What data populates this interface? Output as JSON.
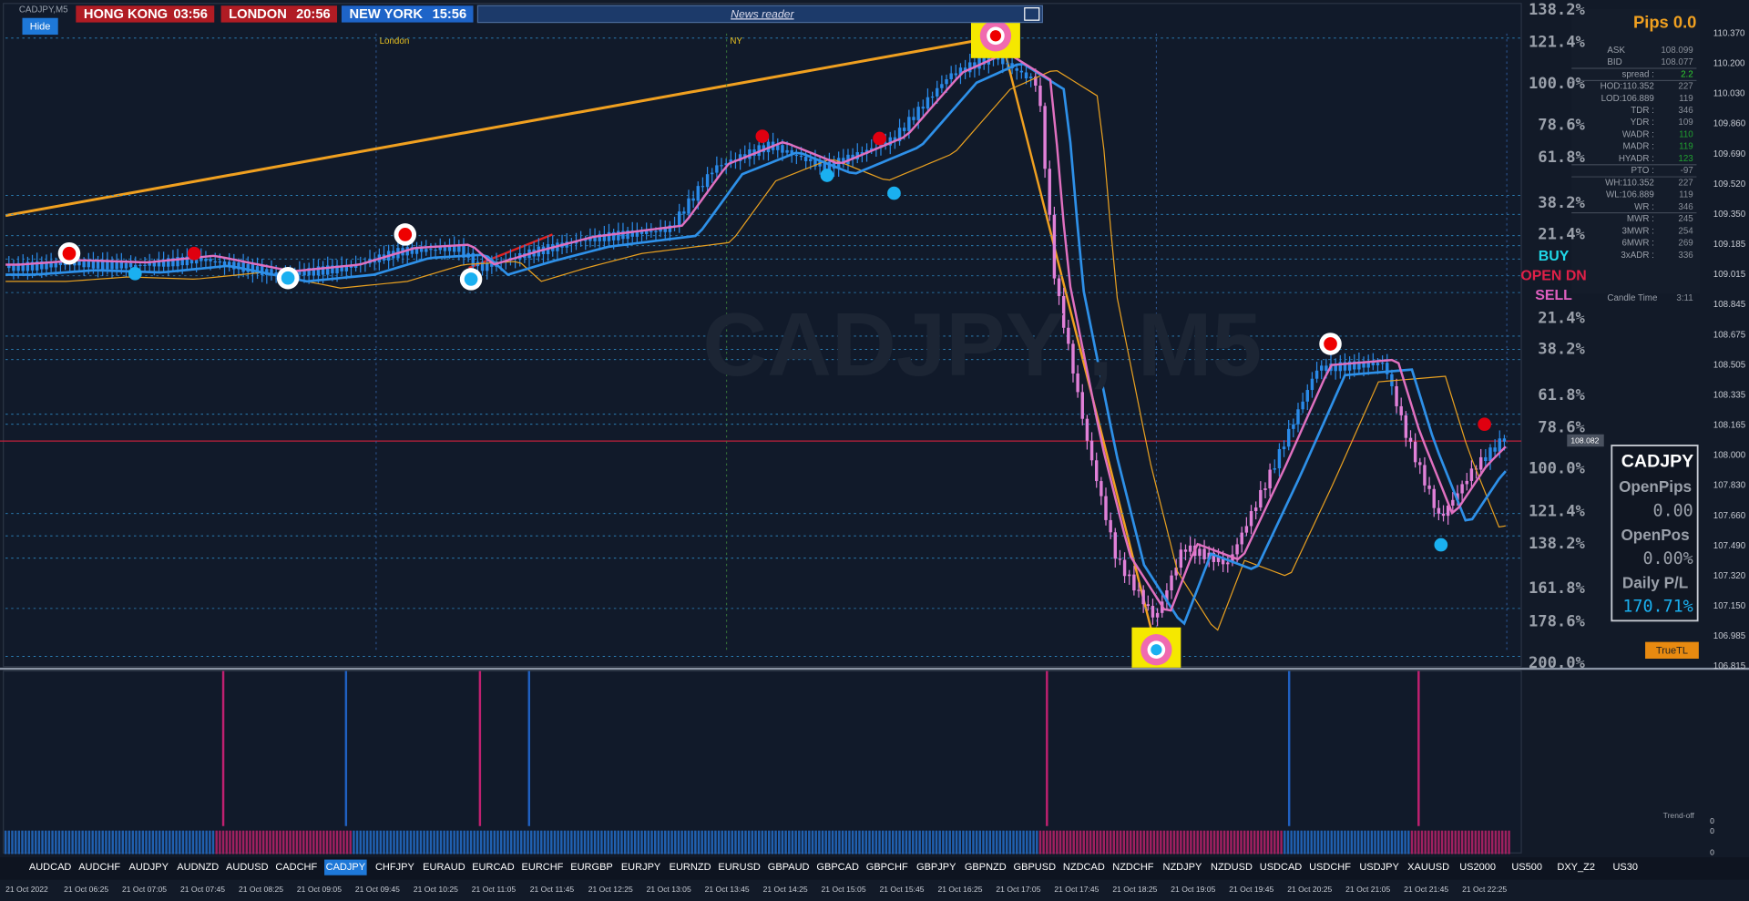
{
  "header": {
    "symbol": "CADJPY,M5",
    "hide": "Hide",
    "news": "News reader",
    "clocks": [
      {
        "city": "HONG KONG",
        "time": "03:56"
      },
      {
        "city": "LONDON",
        "time": "20:56"
      },
      {
        "city": "NEW YORK",
        "time": "15:56"
      }
    ]
  },
  "sessions": [
    "London",
    "NY"
  ],
  "watermark": "CADJPY , M5",
  "price_axis": [
    "110.370",
    "110.200",
    "110.030",
    "109.860",
    "109.690",
    "109.520",
    "109.350",
    "109.185",
    "109.015",
    "108.845",
    "108.675",
    "108.505",
    "108.335",
    "108.165",
    "108.000",
    "107.830",
    "107.660",
    "107.490",
    "107.320",
    "107.150",
    "106.985",
    "106.815"
  ],
  "current_price": "108.082",
  "fib_top": [
    "138.2%",
    "121.4%",
    "100.0%",
    "78.6%",
    "61.8%",
    "38.2%",
    "21.4%"
  ],
  "signals": [
    "BUY",
    "OPEN DN",
    "SELL"
  ],
  "fib_bottom": [
    "21.4%",
    "38.2%",
    "61.8%",
    "78.6%",
    "100.0%",
    "121.4%",
    "138.2%",
    "161.8%",
    "178.6%",
    "200.0%"
  ],
  "panel": {
    "title": "Pips 0.0",
    "rows": [
      {
        "label": "ASK",
        "value": "108.099"
      },
      {
        "label": "BID",
        "value": "108.077"
      },
      {
        "label": "spread :",
        "value": "2.2"
      },
      {
        "label": "HOD:110.352",
        "value": "227"
      },
      {
        "label": "LOD:106.889",
        "value": "119"
      },
      {
        "label": "TDR :",
        "value": "346"
      },
      {
        "label": "YDR :",
        "value": "109"
      },
      {
        "label": "WADR :",
        "value": "110"
      },
      {
        "label": "MADR :",
        "value": "119"
      },
      {
        "label": "HYADR :",
        "value": "123"
      },
      {
        "label": "PTO :",
        "value": "-97"
      },
      {
        "label": "WH:110.352",
        "value": "227"
      },
      {
        "label": "WL:106.889",
        "value": "119"
      },
      {
        "label": "WR :",
        "value": "346"
      },
      {
        "label": "MWR :",
        "value": "245"
      },
      {
        "label": "3MWR :",
        "value": "254"
      },
      {
        "label": "6MWR :",
        "value": "269"
      },
      {
        "label": "3xADR :",
        "value": "336"
      },
      {
        "label": "Candle Time",
        "value": "3:11"
      }
    ]
  },
  "box": {
    "symbol": "CADJPY",
    "items": [
      {
        "label": "OpenPips",
        "value": "0.00"
      },
      {
        "label": "OpenPos",
        "value": "0.00%"
      },
      {
        "label": "Daily P/L",
        "value": "170.71%"
      }
    ]
  },
  "truetl": "TrueTL",
  "indicator": {
    "label": "Trend-off",
    "axis": [
      "0",
      "0",
      "0"
    ]
  },
  "symbols": [
    "AUDCAD",
    "AUDCHF",
    "AUDJPY",
    "AUDNZD",
    "AUDUSD",
    "CADCHF",
    "CADJPY",
    "CHFJPY",
    "EURAUD",
    "EURCAD",
    "EURCHF",
    "EURGBP",
    "EURJPY",
    "EURNZD",
    "EURUSD",
    "GBPAUD",
    "GBPCAD",
    "GBPCHF",
    "GBPJPY",
    "GBPNZD",
    "GBPUSD",
    "NZDCAD",
    "NZDCHF",
    "NZDJPY",
    "NZDUSD",
    "USDCAD",
    "USDCHF",
    "USDJPY",
    "XAUUSD",
    "US2000",
    "US500",
    "DXY_Z2",
    "US30"
  ],
  "active_symbol": "CADJPY",
  "time_axis": [
    "21 Oct 2022",
    "21 Oct 06:25",
    "21 Oct 07:05",
    "21 Oct 07:45",
    "21 Oct 08:25",
    "21 Oct 09:05",
    "21 Oct 09:45",
    "21 Oct 10:25",
    "21 Oct 11:05",
    "21 Oct 11:45",
    "21 Oct 12:25",
    "21 Oct 13:05",
    "21 Oct 13:45",
    "21 Oct 14:25",
    "21 Oct 15:05",
    "21 Oct 15:45",
    "21 Oct 16:25",
    "21 Oct 17:05",
    "21 Oct 17:45",
    "21 Oct 18:25",
    "21 Oct 19:05",
    "21 Oct 19:45",
    "21 Oct 20:25",
    "21 Oct 21:05",
    "21 Oct 21:45",
    "21 Oct 22:25"
  ]
}
